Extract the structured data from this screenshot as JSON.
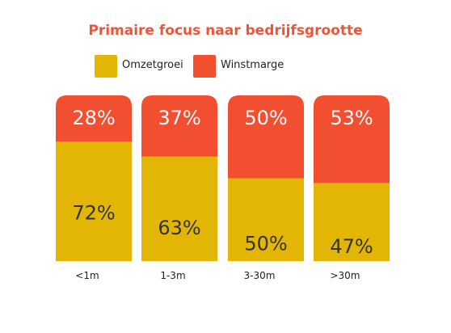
{
  "chart_data": {
    "type": "bar",
    "stacked": true,
    "title": "Primaire focus naar bedrijfsgrootte",
    "categories": [
      "<1m",
      "1-3m",
      "3-30m",
      ">30m"
    ],
    "series": [
      {
        "name": "Omzetgroei",
        "color": "#e3b505",
        "values": [
          72,
          63,
          50,
          47
        ],
        "labels": [
          "72%",
          "63%",
          "50%",
          "47%"
        ]
      },
      {
        "name": "Winstmarge",
        "color": "#f24e30",
        "values": [
          28,
          37,
          50,
          53
        ],
        "labels": [
          "28%",
          "37%",
          "50%",
          "53%"
        ]
      }
    ],
    "ylim": [
      0,
      100
    ],
    "unit": "%",
    "legend_position": "top",
    "grid": false,
    "xlabel": "",
    "ylabel": ""
  }
}
